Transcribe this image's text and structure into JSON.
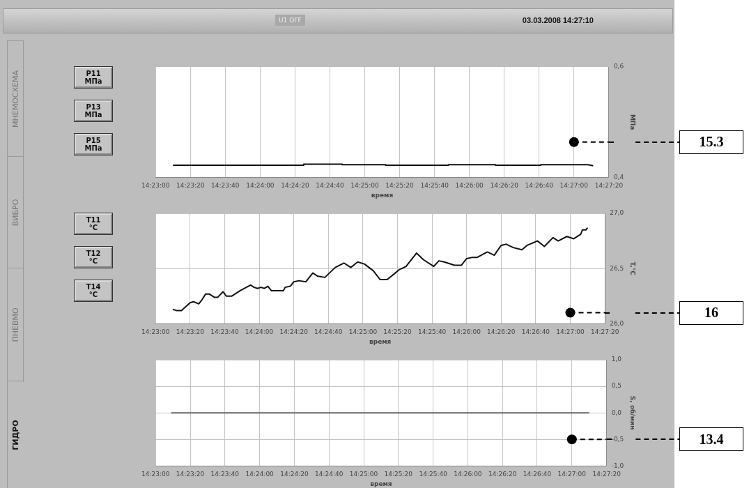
{
  "chart_data": [
    {
      "type": "other",
      "annotations": [
        "U1 OFF",
        "03.03.2008 14:27:10",
        "МНЕМОСХЕМА",
        "ВИБРО",
        "ПНЕВМО",
        "ГИДРО",
        "P11 МПа",
        "P13 МПа",
        "P15 МПа",
        "T11 °C",
        "T12 °C",
        "T14 °C"
      ]
    },
    {
      "type": "line",
      "xlabel": "время",
      "ylabel": "МПа",
      "grid": "x",
      "marker": "none",
      "xlim": [
        14.38333,
        14.45556
      ],
      "xticks": [
        {
          "value": 14.38333,
          "label": "14:23:00"
        },
        {
          "value": 14.38889,
          "label": "14:23:20"
        },
        {
          "value": 14.39444,
          "label": "14:23:40"
        },
        {
          "value": 14.4,
          "label": "14:24:00"
        },
        {
          "value": 14.40556,
          "label": "14:24:20"
        },
        {
          "value": 14.41111,
          "label": "14:24:40"
        },
        {
          "value": 14.41667,
          "label": "14:25:00"
        },
        {
          "value": 14.42222,
          "label": "14:25:20"
        },
        {
          "value": 14.42778,
          "label": "14:25:40"
        },
        {
          "value": 14.43333,
          "label": "14:26:00"
        },
        {
          "value": 14.43889,
          "label": "14:26:20"
        },
        {
          "value": 14.44444,
          "label": "14:26:40"
        },
        {
          "value": 14.45,
          "label": "14:27:00"
        },
        {
          "value": 14.45556,
          "label": "14:27:20"
        }
      ],
      "ylim": [
        0.4,
        0.6
      ],
      "yticks": [
        {
          "value": 0.4,
          "label": "0,4"
        },
        {
          "value": 0.6,
          "label": "0,6"
        }
      ],
      "series": [
        {
          "type": "scatter",
          "marker": "circle",
          "color": "#000000",
          "x": [
            14.45
          ],
          "values": [
            0.464
          ]
        },
        {
          "type": "line",
          "line_style": "dashed",
          "color": "#000000",
          "x": [
            14.45,
            14.45556
          ],
          "values": [
            0.464,
            0.464
          ]
        },
        {
          "color": "#111111",
          "x": [
            14.38611,
            14.40694,
            14.40694,
            14.41306,
            14.41306,
            14.42,
            14.42,
            14.43,
            14.43,
            14.4375,
            14.4375,
            14.44472,
            14.44472,
            14.45222,
            14.45306
          ],
          "values": [
            0.422,
            0.422,
            0.424,
            0.424,
            0.423,
            0.423,
            0.422,
            0.422,
            0.423,
            0.423,
            0.422,
            0.422,
            0.423,
            0.423,
            0.421
          ]
        }
      ],
      "annotations": [
        "15.3"
      ]
    },
    {
      "type": "line",
      "xlabel": "время",
      "ylabel": "T,°C",
      "grid": true,
      "marker": "none",
      "xlim": [
        14.38333,
        14.45556
      ],
      "xticks": [
        {
          "value": 14.38333,
          "label": "14:23:00"
        },
        {
          "value": 14.38889,
          "label": "14:23:20"
        },
        {
          "value": 14.39444,
          "label": "14:23:40"
        },
        {
          "value": 14.4,
          "label": "14:24:00"
        },
        {
          "value": 14.40556,
          "label": "14:24:20"
        },
        {
          "value": 14.41111,
          "label": "14:24:40"
        },
        {
          "value": 14.41667,
          "label": "14:25:00"
        },
        {
          "value": 14.42222,
          "label": "14:25:20"
        },
        {
          "value": 14.42778,
          "label": "14:25:40"
        },
        {
          "value": 14.43333,
          "label": "14:26:00"
        },
        {
          "value": 14.43889,
          "label": "14:26:20"
        },
        {
          "value": 14.44444,
          "label": "14:26:40"
        },
        {
          "value": 14.45,
          "label": "14:27:00"
        },
        {
          "value": 14.45556,
          "label": "14:27:20"
        }
      ],
      "ylim": [
        26,
        27
      ],
      "yticks": [
        {
          "value": 26,
          "label": "26,0"
        },
        {
          "value": 26.5,
          "label": "26,5"
        },
        {
          "value": 27,
          "label": "27,0"
        }
      ],
      "series": [
        {
          "type": "scatter",
          "marker": "circle",
          "color": "#000000",
          "x": [
            14.45
          ],
          "values": [
            26.1
          ]
        },
        {
          "type": "line",
          "line_style": "dashed",
          "color": "#000000",
          "x": [
            14.45,
            14.45556
          ],
          "values": [
            26.1,
            26.1
          ]
        },
        {
          "color": "#111111",
          "x": [
            14.38611,
            14.38667,
            14.3875,
            14.38889,
            14.38944,
            14.39028,
            14.39083,
            14.39139,
            14.39194,
            14.39278,
            14.39333,
            14.39417,
            14.39472,
            14.39556,
            14.39694,
            14.39861,
            14.39917,
            14.39972,
            14.40028,
            14.40083,
            14.40139,
            14.40194,
            14.40389,
            14.40417,
            14.405,
            14.40556,
            14.40639,
            14.4075,
            14.40861,
            14.40944,
            14.41056,
            14.41111,
            14.41222,
            14.41361,
            14.41472,
            14.41583,
            14.41694,
            14.41833,
            14.41944,
            14.42056,
            14.42167,
            14.4225,
            14.42361,
            14.42417,
            14.42528,
            14.42639,
            14.42806,
            14.42889,
            14.42972,
            14.43139,
            14.4325,
            14.43333,
            14.43417,
            14.435,
            14.43667,
            14.43778,
            14.43889,
            14.43972,
            14.44083,
            14.44222,
            14.44306,
            14.44472,
            14.44583,
            14.44722,
            14.44806,
            14.44944,
            14.45056,
            14.45139,
            14.45167,
            14.45194,
            14.4525,
            14.45278
          ],
          "values": [
            26.13,
            26.12,
            26.12,
            26.19,
            26.2,
            26.18,
            26.22,
            26.27,
            26.27,
            26.24,
            26.24,
            26.29,
            26.25,
            26.25,
            26.3,
            26.35,
            26.33,
            26.32,
            26.33,
            26.32,
            26.34,
            26.3,
            26.3,
            26.33,
            26.34,
            26.38,
            26.39,
            26.38,
            26.46,
            26.43,
            26.42,
            26.45,
            26.51,
            26.55,
            26.51,
            26.56,
            26.54,
            26.48,
            26.4,
            26.4,
            26.45,
            26.49,
            26.52,
            26.56,
            26.64,
            26.58,
            26.52,
            26.57,
            26.56,
            26.53,
            26.53,
            26.59,
            26.6,
            26.6,
            26.65,
            26.62,
            26.71,
            26.72,
            26.69,
            26.67,
            26.71,
            26.75,
            26.7,
            26.78,
            26.75,
            26.79,
            26.77,
            26.8,
            26.81,
            26.85,
            26.85,
            26.87
          ]
        }
      ],
      "annotations": [
        "16"
      ]
    },
    {
      "type": "line",
      "xlabel": "время",
      "ylabel": "S, об/мин",
      "grid": true,
      "marker": "none",
      "xlim": [
        14.38333,
        14.45556
      ],
      "xticks": [
        {
          "value": 14.38333,
          "label": "14:23:00"
        },
        {
          "value": 14.38889,
          "label": "14:23:20"
        },
        {
          "value": 14.39444,
          "label": "14:23:40"
        },
        {
          "value": 14.4,
          "label": "14:24:00"
        },
        {
          "value": 14.40556,
          "label": "14:24:20"
        },
        {
          "value": 14.41111,
          "label": "14:24:40"
        },
        {
          "value": 14.41667,
          "label": "14:25:00"
        },
        {
          "value": 14.42222,
          "label": "14:25:20"
        },
        {
          "value": 14.42778,
          "label": "14:25:40"
        },
        {
          "value": 14.43333,
          "label": "14:26:00"
        },
        {
          "value": 14.43889,
          "label": "14:26:20"
        },
        {
          "value": 14.44444,
          "label": "14:26:40"
        },
        {
          "value": 14.45,
          "label": "14:27:00"
        },
        {
          "value": 14.45556,
          "label": "14:27:20"
        }
      ],
      "ylim": [
        -1,
        1
      ],
      "yticks": [
        {
          "value": -1,
          "label": "-1,0"
        },
        {
          "value": -0.5,
          "label": "-0,5"
        },
        {
          "value": 0,
          "label": "0,0"
        },
        {
          "value": 0.5,
          "label": "0,5"
        },
        {
          "value": 1,
          "label": "1,0"
        }
      ],
      "series": [
        {
          "type": "scatter",
          "marker": "circle",
          "color": "#000000",
          "x": [
            14.45
          ],
          "values": [
            -0.5
          ]
        },
        {
          "type": "line",
          "line_style": "dashed",
          "color": "#000000",
          "x": [
            14.45,
            14.45556
          ],
          "values": [
            -0.5,
            -0.5
          ]
        },
        {
          "color": "#666666",
          "x": [
            14.38583,
            14.45278
          ],
          "values": [
            0,
            0
          ]
        }
      ],
      "annotations": [
        "13.4"
      ]
    }
  ]
}
